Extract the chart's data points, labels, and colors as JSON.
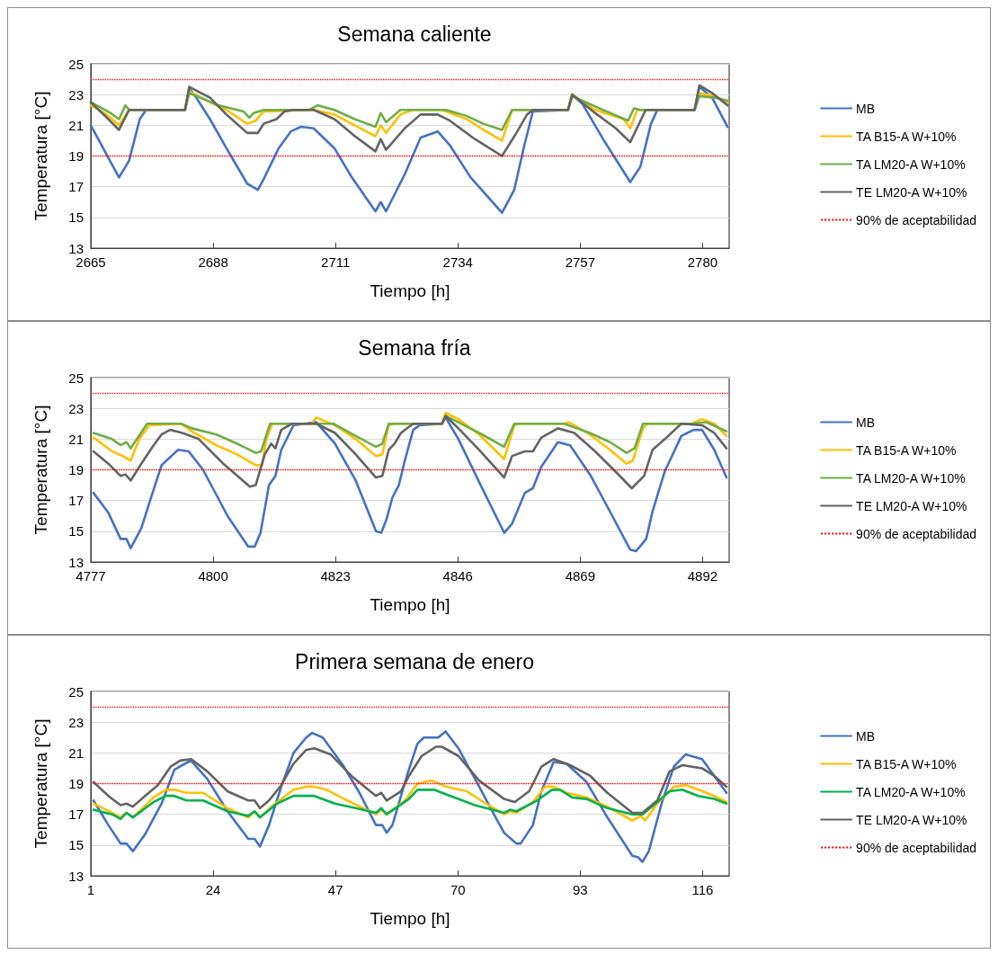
{
  "chart_data": [
    {
      "type": "line",
      "title": "Semana caliente",
      "xlabel": "Tiempo [h]",
      "ylabel": "Temperatura [°C]",
      "xlim": [
        2665,
        2785
      ],
      "xticks": [
        2665,
        2688,
        2711,
        2734,
        2757,
        2780
      ],
      "ylim": [
        13,
        25
      ],
      "yticks": [
        13,
        15,
        17,
        19,
        21,
        23,
        25
      ],
      "grid": "y",
      "legend": "right",
      "marker": "none",
      "line_style": "solid",
      "ref_lines": [
        {
          "axis": "y",
          "value": 24,
          "label": "90% de aceptabilidad",
          "color": "#ff0000",
          "line_style": "dotted"
        },
        {
          "axis": "y",
          "value": 19,
          "color": "#ff0000",
          "line_style": "dotted"
        }
      ],
      "series": [
        {
          "name": "MB",
          "color": "#4472c4",
          "x": [
            2665,
            2670.3,
            2672.2,
            2674.2,
            2675.4,
            2682.7,
            2683.5,
            2685,
            2687.4,
            2690.5,
            2694.4,
            2696.4,
            2697.5,
            2700.3,
            2702.6,
            2704.5,
            2706.9,
            2710.8,
            2713.9,
            2718.5,
            2719.5,
            2720.5,
            2724,
            2727,
            2730.2,
            2732.5,
            2736.4,
            2742.3,
            2744.6,
            2746.5,
            2748.1,
            2754.7,
            2755.5,
            2757.4,
            2761.3,
            2766.4,
            2768.3,
            2770.3,
            2771.5,
            2778.5,
            2779.4,
            2781.8,
            2784.7
          ],
          "values": [
            21.0,
            17.6,
            18.7,
            21.4,
            22.0,
            22.0,
            23.4,
            22.7,
            21.4,
            19.5,
            17.2,
            16.8,
            17.5,
            19.5,
            20.6,
            20.9,
            20.8,
            19.5,
            17.7,
            15.4,
            16.0,
            15.4,
            17.8,
            20.2,
            20.6,
            19.7,
            17.6,
            15.3,
            16.8,
            19.7,
            21.9,
            22.0,
            23.0,
            22.4,
            20.1,
            17.3,
            18.3,
            21.1,
            22.0,
            22.0,
            23.5,
            22.8,
            20.9
          ]
        },
        {
          "name": "TA B15-A W+10%",
          "color": "#ffc000",
          "x": [
            2665,
            2668,
            2670.3,
            2672.2,
            2682.7,
            2683.5,
            2687.4,
            2690.5,
            2694.4,
            2696,
            2697.5,
            2706.9,
            2710.8,
            2714.6,
            2718.5,
            2719.5,
            2720.5,
            2723.2,
            2725.5,
            2731,
            2735.7,
            2738.8,
            2742.3,
            2744.2,
            2754.7,
            2755.5,
            2759.8,
            2765.2,
            2766.4,
            2767.7,
            2778.5,
            2779.4,
            2782.3,
            2784.7
          ],
          "values": [
            22.3,
            21.7,
            21.0,
            22.0,
            22.0,
            23.2,
            22.5,
            22.0,
            21.1,
            21.3,
            21.9,
            22.0,
            21.7,
            21.0,
            20.3,
            21.0,
            20.5,
            21.7,
            22.0,
            22.0,
            21.4,
            20.7,
            20.0,
            22.0,
            22.0,
            23.0,
            22.0,
            21.4,
            20.8,
            22.0,
            22.0,
            23.1,
            22.9,
            22.5
          ]
        },
        {
          "name": "TA LM20-A W+10%",
          "color": "#70ad47",
          "x": [
            2665,
            2668.7,
            2670.3,
            2671.5,
            2672.2,
            2682.7,
            2683.5,
            2689,
            2693.7,
            2694.8,
            2695.6,
            2697.5,
            2706.1,
            2707.6,
            2710.8,
            2714.6,
            2718.5,
            2719.5,
            2720.5,
            2723.2,
            2731.8,
            2735.7,
            2738.8,
            2742.3,
            2744.2,
            2754.7,
            2755.5,
            2760.6,
            2766,
            2767.1,
            2768.3,
            2778.5,
            2779.4,
            2782.3,
            2784.7
          ],
          "values": [
            22.5,
            21.8,
            21.4,
            22.3,
            22.0,
            22.0,
            23.1,
            22.3,
            21.9,
            21.5,
            21.8,
            22.0,
            22.0,
            22.3,
            22.0,
            21.4,
            20.9,
            21.8,
            21.2,
            22.0,
            22.0,
            21.6,
            21.1,
            20.7,
            22.0,
            22.0,
            22.9,
            22.1,
            21.3,
            22.1,
            22.0,
            22.0,
            22.9,
            22.8,
            22.6
          ]
        },
        {
          "name": "TE LM20-A W+10%",
          "color": "#636363",
          "x": [
            2665,
            2668,
            2670.3,
            2672.2,
            2682.7,
            2683.5,
            2687.4,
            2690.5,
            2694.4,
            2696.4,
            2697.5,
            2699.9,
            2701.4,
            2703,
            2706.9,
            2710.8,
            2714.6,
            2718.5,
            2719.5,
            2720.5,
            2724,
            2727,
            2730.2,
            2732.5,
            2737.2,
            2742.3,
            2745,
            2747,
            2748.1,
            2754.7,
            2755.5,
            2759.8,
            2763.7,
            2766.4,
            2769.3,
            2778.5,
            2779.4,
            2781.8,
            2784.7
          ],
          "values": [
            22.5,
            21.5,
            20.7,
            22.0,
            22.0,
            23.5,
            22.8,
            21.7,
            20.5,
            20.5,
            21.1,
            21.4,
            21.9,
            22.0,
            22.0,
            21.4,
            20.3,
            19.3,
            20.1,
            19.4,
            20.8,
            21.7,
            21.7,
            21.3,
            20.1,
            19.0,
            20.5,
            21.7,
            22.0,
            22.0,
            23.0,
            21.8,
            20.8,
            19.9,
            22.0,
            22.0,
            23.6,
            23.1,
            22.3
          ]
        }
      ]
    },
    {
      "type": "line",
      "title": "Semana fría",
      "xlabel": "Tiempo [h]",
      "ylabel": "Temperatura [°C]",
      "xlim": [
        4777,
        4897
      ],
      "xticks": [
        4777,
        4800,
        4823,
        4846,
        4869,
        4892
      ],
      "ylim": [
        13,
        25
      ],
      "yticks": [
        13,
        15,
        17,
        19,
        21,
        23,
        25
      ],
      "grid": "y",
      "legend": "right",
      "marker": "none",
      "line_style": "solid",
      "ref_lines": [
        {
          "axis": "y",
          "value": 24,
          "label": "90% de aceptabilidad",
          "color": "#ff0000",
          "line_style": "dotted"
        },
        {
          "axis": "y",
          "value": 19,
          "color": "#ff0000",
          "line_style": "dotted"
        }
      ],
      "series": [
        {
          "name": "MB",
          "color": "#4472c4",
          "x": [
            4777.5,
            4780.3,
            4782.6,
            4783.7,
            4784.5,
            4786.5,
            4788.8,
            4790.3,
            4793.4,
            4795.4,
            4798.1,
            4802.7,
            4806.6,
            4807.8,
            4808.9,
            4810.5,
            4811.7,
            4812.8,
            4815.1,
            4819.4,
            4822.9,
            4826.8,
            4830.6,
            4831.6,
            4832.6,
            4833.7,
            4834.9,
            4836.1,
            4837.6,
            4838.8,
            4843,
            4843.7,
            4846.1,
            4850,
            4854.7,
            4856.2,
            4858.6,
            4860.1,
            4861.7,
            4864.8,
            4867.1,
            4871,
            4874.1,
            4878.4,
            4879.5,
            4881.4,
            4882.6,
            4884.9,
            4888,
            4890.3,
            4891.9,
            4894.2,
            4896.5
          ],
          "values": [
            17.5,
            16.2,
            14.5,
            14.5,
            13.9,
            15.2,
            17.7,
            19.3,
            20.3,
            20.2,
            19.0,
            16.0,
            14.0,
            14.0,
            14.9,
            18.0,
            18.6,
            20.3,
            21.9,
            22.1,
            20.7,
            18.3,
            15.0,
            14.9,
            15.8,
            17.2,
            18.0,
            19.7,
            21.6,
            21.9,
            22.0,
            22.4,
            21.0,
            18.2,
            14.9,
            15.5,
            17.5,
            17.8,
            19.2,
            20.8,
            20.6,
            18.6,
            16.6,
            13.8,
            13.7,
            14.5,
            16.3,
            18.9,
            21.2,
            21.6,
            21.6,
            20.3,
            18.5
          ]
        },
        {
          "name": "TA B15-A W+10%",
          "color": "#ffc000",
          "x": [
            4777.5,
            4781,
            4783,
            4784.5,
            4786.1,
            4788,
            4794,
            4796,
            4800.6,
            4804.5,
            4808,
            4809.2,
            4810,
            4811.1,
            4818.5,
            4819.4,
            4822.9,
            4826.8,
            4830.6,
            4831.8,
            4833,
            4834.1,
            4843,
            4843.7,
            4846.1,
            4850,
            4854.7,
            4856.6,
            4857.4,
            4866,
            4866.9,
            4870.8,
            4874.6,
            4877.7,
            4878.9,
            4880.8,
            4881.6,
            4890,
            4891.9,
            4894.2,
            4896.5
          ],
          "values": [
            21.1,
            20.2,
            19.9,
            19.6,
            21.0,
            21.9,
            22.0,
            21.5,
            20.6,
            20.0,
            19.3,
            19.3,
            21.0,
            22.0,
            22.0,
            22.4,
            21.9,
            21.0,
            19.9,
            20.0,
            21.9,
            22.0,
            22.0,
            22.7,
            22.3,
            21.3,
            19.7,
            21.9,
            22.0,
            22.0,
            22.1,
            21.3,
            20.3,
            19.4,
            19.6,
            21.7,
            22.0,
            22.0,
            22.3,
            22.0,
            21.2
          ]
        },
        {
          "name": "TA LM20-A W+10%",
          "color": "#70ad47",
          "x": [
            4777.5,
            4781,
            4782.6,
            4783.7,
            4784.5,
            4787.6,
            4794,
            4796,
            4800.6,
            4804.5,
            4808,
            4809,
            4810.7,
            4822.6,
            4826.8,
            4830.6,
            4831.8,
            4833,
            4843,
            4843.7,
            4846.1,
            4850,
            4854.7,
            4856.6,
            4866,
            4870.8,
            4874.6,
            4877.7,
            4879.2,
            4880.8,
            4890,
            4892.7,
            4896.5
          ],
          "values": [
            21.4,
            21.0,
            20.6,
            20.8,
            20.4,
            22.0,
            22.0,
            21.7,
            21.3,
            20.7,
            20.1,
            20.2,
            22.0,
            22.0,
            21.2,
            20.5,
            20.7,
            22.0,
            22.0,
            22.5,
            22.1,
            21.4,
            20.5,
            22.0,
            22.0,
            21.4,
            20.8,
            20.1,
            20.4,
            22.0,
            22.0,
            22.1,
            21.5
          ]
        },
        {
          "name": "TE LM20-A W+10%",
          "color": "#636363",
          "x": [
            4777.5,
            4780.3,
            4782.6,
            4783.5,
            4784.5,
            4786.5,
            4788.8,
            4790.3,
            4791.9,
            4794.2,
            4797.3,
            4801.9,
            4806.9,
            4808,
            4809.7,
            4810.9,
            4811.7,
            4812.8,
            4814.8,
            4819.4,
            4822.9,
            4826.8,
            4830.6,
            4831.8,
            4833,
            4834.1,
            4835.3,
            4837.6,
            4843,
            4843.7,
            4846.1,
            4850,
            4854.7,
            4856.2,
            4858.6,
            4860.1,
            4861.7,
            4864.8,
            4867.9,
            4871.8,
            4875.6,
            4878.7,
            4881,
            4882.6,
            4884.9,
            4888,
            4891.9,
            4894.2,
            4896.5
          ],
          "values": [
            20.2,
            19.4,
            18.6,
            18.7,
            18.3,
            19.4,
            20.6,
            21.3,
            21.6,
            21.4,
            21.0,
            19.4,
            17.9,
            18.0,
            20.0,
            20.7,
            20.4,
            21.6,
            22.0,
            22.0,
            21.4,
            20.0,
            18.5,
            18.6,
            20.3,
            20.7,
            21.4,
            22.0,
            22.0,
            22.5,
            21.7,
            20.3,
            18.5,
            19.9,
            20.2,
            20.2,
            21.1,
            21.7,
            21.4,
            20.2,
            18.9,
            17.8,
            18.6,
            20.3,
            21.0,
            22.0,
            21.9,
            21.4,
            20.4
          ]
        }
      ]
    },
    {
      "type": "line",
      "title": "Primera semana de enero",
      "xlabel": "Tiempo [h]",
      "ylabel": "Temperatura [°C]",
      "xlim": [
        1,
        121
      ],
      "xticks": [
        1,
        24,
        47,
        70,
        93,
        116
      ],
      "ylim": [
        13,
        25
      ],
      "yticks": [
        13,
        15,
        17,
        19,
        21,
        23,
        25
      ],
      "grid": "y",
      "legend": "right",
      "marker": "none",
      "line_style": "solid",
      "ref_lines": [
        {
          "axis": "y",
          "value": 24,
          "label": "90% de aceptabilidad",
          "color": "#ff0000",
          "line_style": "dotted"
        },
        {
          "axis": "y",
          "value": 19,
          "color": "#ff0000",
          "line_style": "dotted"
        }
      ],
      "series": [
        {
          "name": "MB",
          "color": "#4472c4",
          "x": [
            1.5,
            4.3,
            6.6,
            7.7,
            8.9,
            11.2,
            14.3,
            16.7,
            18.2,
            19.8,
            22.9,
            26.7,
            30.6,
            31.8,
            32.8,
            34.5,
            36.8,
            39.1,
            41.5,
            42.6,
            44.6,
            48.4,
            51.5,
            54.6,
            55.8,
            56.6,
            57.7,
            60.5,
            62.4,
            63.6,
            66.3,
            67.7,
            70.1,
            74,
            77.1,
            78.7,
            81,
            81.8,
            84.1,
            85.7,
            88,
            90.4,
            94.2,
            98.1,
            102.8,
            103.9,
            104.7,
            105.9,
            108.3,
            110.6,
            112.8,
            115.9,
            118.2,
            120.5
          ],
          "values": [
            17.9,
            16.3,
            15.1,
            15.1,
            14.6,
            15.7,
            17.7,
            19.9,
            20.2,
            20.5,
            19.3,
            17.2,
            15.4,
            15.4,
            14.9,
            16.3,
            18.8,
            21.0,
            22.0,
            22.3,
            22.0,
            20.2,
            18.4,
            16.3,
            16.3,
            15.8,
            16.3,
            19.6,
            21.6,
            22.0,
            22.0,
            22.4,
            21.3,
            18.8,
            16.8,
            15.8,
            15.1,
            15.1,
            16.3,
            18.5,
            20.4,
            20.3,
            19.1,
            16.8,
            14.3,
            14.2,
            13.9,
            14.6,
            17.7,
            20.1,
            20.9,
            20.6,
            19.5,
            18.4
          ]
        },
        {
          "name": "TA B15-A W+10%",
          "color": "#ffc000",
          "x": [
            1.5,
            5,
            6.6,
            7.7,
            8.9,
            12.8,
            15.1,
            16.7,
            19,
            22.1,
            26.7,
            30.6,
            31.8,
            32.8,
            35.3,
            39.1,
            41.5,
            43,
            45.3,
            49.2,
            54.6,
            55.6,
            56.6,
            60.1,
            62.4,
            65.1,
            67.8,
            71.7,
            74.8,
            78.7,
            79.8,
            81,
            84.1,
            86.4,
            88,
            90.4,
            94.2,
            98.1,
            102.8,
            104.4,
            105.2,
            107.5,
            110.6,
            112.8,
            115.2,
            118.2,
            120.5
          ],
          "values": [
            17.7,
            17.1,
            16.8,
            17.1,
            16.8,
            18.1,
            18.6,
            18.6,
            18.4,
            18.4,
            17.4,
            16.8,
            17.2,
            16.8,
            17.6,
            18.6,
            18.8,
            18.8,
            18.6,
            17.9,
            17.0,
            17.3,
            17.0,
            17.9,
            19.0,
            19.2,
            18.8,
            18.5,
            17.8,
            17.0,
            17.2,
            17.1,
            17.8,
            18.8,
            18.8,
            18.4,
            18.1,
            17.5,
            16.6,
            16.9,
            16.6,
            17.7,
            18.8,
            18.9,
            18.6,
            18.2,
            17.8
          ]
        },
        {
          "name": "TA LM20-A W+10%",
          "color": "#00b050",
          "x": [
            1.5,
            5,
            6.6,
            7.7,
            8.9,
            12.8,
            15.1,
            16.7,
            19,
            22.1,
            26.7,
            30.6,
            31.8,
            32.8,
            36,
            39.1,
            43,
            46.9,
            50.8,
            54.6,
            55.6,
            56.6,
            60.8,
            62.4,
            65.5,
            68.6,
            73.2,
            78.7,
            79.8,
            81,
            84.9,
            87.7,
            89.2,
            91.5,
            94.2,
            98.1,
            102.8,
            104.7,
            107.5,
            109.8,
            112.2,
            115.2,
            118.2,
            120.5
          ],
          "values": [
            17.3,
            17.0,
            16.7,
            17.1,
            16.8,
            17.8,
            18.2,
            18.2,
            17.9,
            17.9,
            17.2,
            16.9,
            17.2,
            16.8,
            17.7,
            18.2,
            18.2,
            17.7,
            17.4,
            17.1,
            17.4,
            17.0,
            18.0,
            18.6,
            18.6,
            18.2,
            17.6,
            17.1,
            17.3,
            17.2,
            17.9,
            18.6,
            18.6,
            18.1,
            18.0,
            17.4,
            17.0,
            17.0,
            17.8,
            18.5,
            18.6,
            18.2,
            18.0,
            17.7
          ]
        },
        {
          "name": "TE LM20-A W+10%",
          "color": "#636363",
          "x": [
            1.5,
            4.3,
            6.6,
            7.7,
            8.9,
            11.2,
            13.6,
            16,
            17.8,
            19.8,
            22.9,
            26.7,
            30.6,
            31.8,
            32.8,
            34.5,
            36.8,
            39.1,
            41.5,
            43,
            46.1,
            50,
            54.6,
            55.6,
            56.6,
            59.3,
            60.8,
            63.2,
            65.9,
            67,
            70.1,
            74,
            78.7,
            80.7,
            83.4,
            85.7,
            88,
            91.1,
            94.9,
            98.1,
            102.8,
            104.7,
            107.5,
            109.8,
            112.2,
            115.9,
            118.2,
            120.5
          ],
          "values": [
            19.1,
            18.2,
            17.6,
            17.7,
            17.5,
            18.2,
            18.9,
            20.1,
            20.5,
            20.6,
            19.8,
            18.5,
            17.9,
            17.9,
            17.4,
            17.9,
            18.9,
            20.3,
            21.2,
            21.3,
            20.9,
            19.5,
            18.2,
            18.4,
            17.9,
            18.5,
            19.5,
            20.8,
            21.4,
            21.4,
            20.8,
            19.2,
            18.0,
            17.8,
            18.5,
            20.1,
            20.6,
            20.2,
            19.5,
            18.4,
            17.1,
            17.1,
            17.9,
            19.8,
            20.2,
            20.0,
            19.5,
            18.8
          ]
        }
      ]
    }
  ]
}
